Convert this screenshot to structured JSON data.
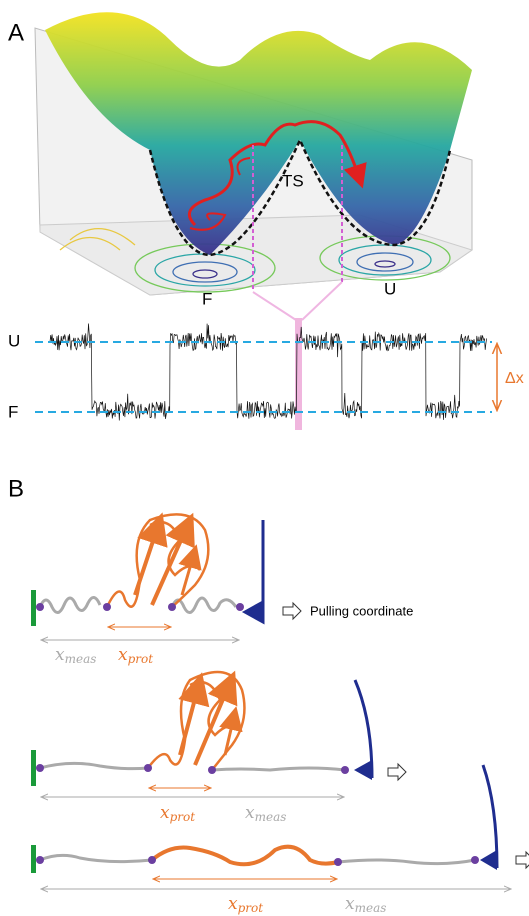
{
  "panel_a": {
    "label": "A",
    "saddle_label": "TS",
    "folded_well_label": "F",
    "unfolded_well_label": "U",
    "trace_upper_label": "U",
    "trace_lower_label": "F",
    "extension_label": "Δx"
  },
  "panel_b": {
    "label": "B",
    "arrow_caption": "Pulling coordinate",
    "rows": [
      {
        "x_prot": {
          "symbol": "x",
          "subscript": "prot"
        },
        "x_meas": {
          "symbol": "x",
          "subscript": "meas"
        }
      },
      {
        "x_prot": {
          "symbol": "x",
          "subscript": "prot"
        },
        "x_meas": {
          "symbol": "x",
          "subscript": "meas"
        }
      },
      {
        "x_prot": {
          "symbol": "x",
          "subscript": "prot"
        },
        "x_meas": {
          "symbol": "x",
          "subscript": "meas"
        }
      }
    ]
  }
}
